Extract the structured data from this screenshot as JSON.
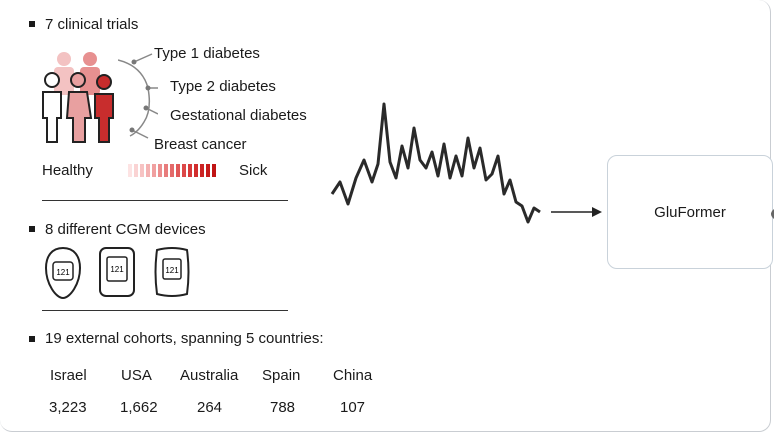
{
  "section1": {
    "title": "7 clinical trials",
    "conditions": [
      "Type 1 diabetes",
      "Type 2 diabetes",
      "Gestational diabetes",
      "Breast cancer"
    ],
    "healthy_label": "Healthy",
    "sick_label": "Sick"
  },
  "section2": {
    "title": "8 different CGM devices",
    "device_reading": "121"
  },
  "section3": {
    "title": "19 external cohorts, spanning 5 countries:",
    "countries": [
      "Israel",
      "USA",
      "Australia",
      "Spain",
      "China"
    ],
    "counts": [
      "3,223",
      "1,662",
      "264",
      "788",
      "107"
    ]
  },
  "model": {
    "label": "GluFormer"
  },
  "colors": {
    "accent": "#d84a4a",
    "light_accent": "#f3c2c2",
    "box_border": "#c9d2da"
  }
}
